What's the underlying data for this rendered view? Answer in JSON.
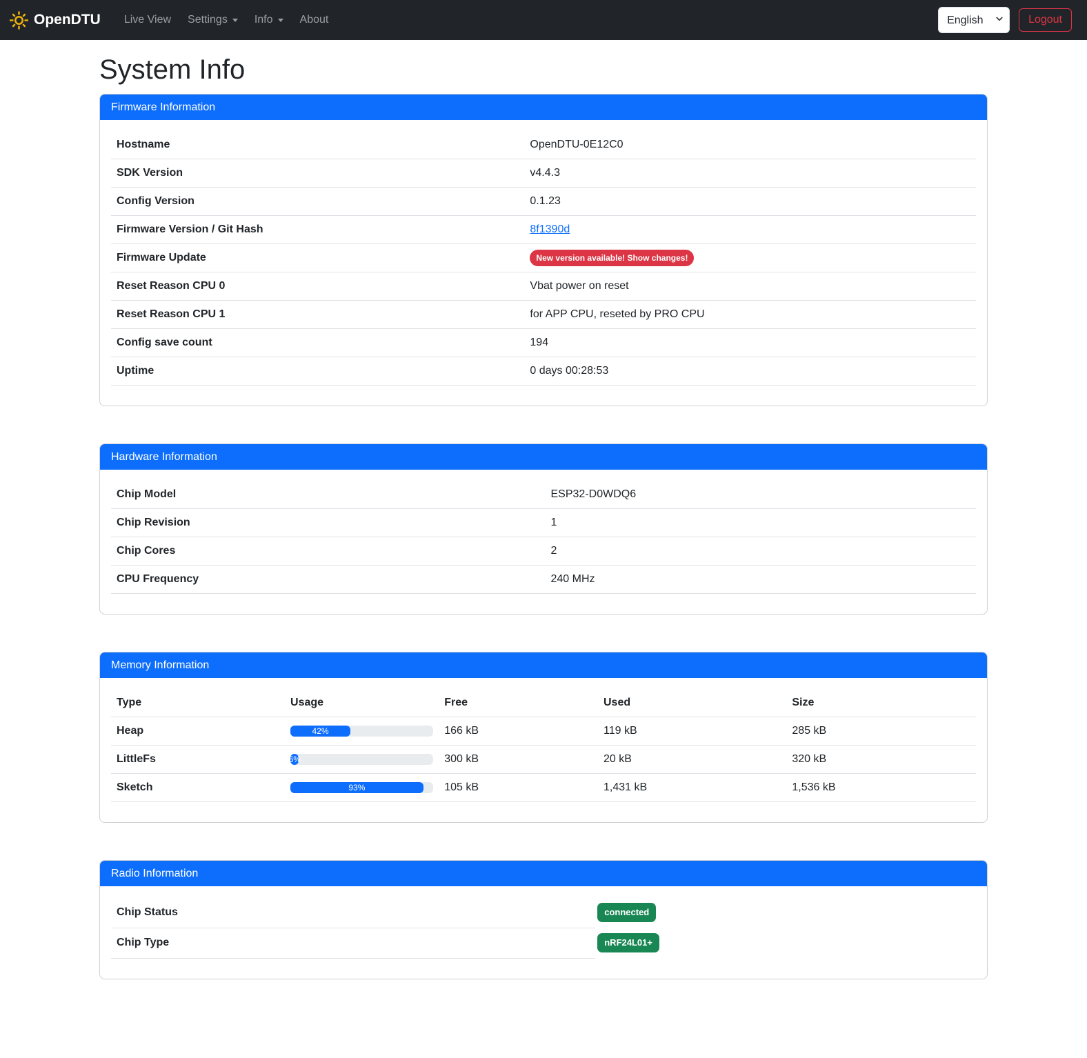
{
  "navbar": {
    "brand": "OpenDTU",
    "items": [
      {
        "label": "Live View",
        "dropdown": false
      },
      {
        "label": "Settings",
        "dropdown": true
      },
      {
        "label": "Info",
        "dropdown": true
      },
      {
        "label": "About",
        "dropdown": false
      }
    ],
    "language": "English",
    "logout_label": "Logout"
  },
  "page": {
    "title": "System Info"
  },
  "firmware": {
    "header": "Firmware Information",
    "rows": [
      {
        "label": "Hostname",
        "value": "OpenDTU-0E12C0"
      },
      {
        "label": "SDK Version",
        "value": "v4.4.3"
      },
      {
        "label": "Config Version",
        "value": "0.1.23"
      },
      {
        "label": "Firmware Version / Git Hash",
        "value": "8f1390d",
        "type": "link"
      },
      {
        "label": "Firmware Update",
        "value": "New version available! Show changes!",
        "type": "badge-danger"
      },
      {
        "label": "Reset Reason CPU 0",
        "value": "Vbat power on reset"
      },
      {
        "label": "Reset Reason CPU 1",
        "value": "for APP CPU, reseted by PRO CPU"
      },
      {
        "label": "Config save count",
        "value": "194"
      },
      {
        "label": "Uptime",
        "value": "0 days 00:28:53"
      }
    ]
  },
  "hardware": {
    "header": "Hardware Information",
    "rows": [
      {
        "label": "Chip Model",
        "value": "ESP32-D0WDQ6"
      },
      {
        "label": "Chip Revision",
        "value": "1"
      },
      {
        "label": "Chip Cores",
        "value": "2"
      },
      {
        "label": "CPU Frequency",
        "value": "240 MHz"
      }
    ]
  },
  "memory": {
    "header": "Memory Information",
    "columns": [
      "Type",
      "Usage",
      "Free",
      "Used",
      "Size"
    ],
    "rows": [
      {
        "type": "Heap",
        "usage_pct": 42,
        "usage_label": "42%",
        "free": "166 kB",
        "used": "119 kB",
        "size": "285 kB"
      },
      {
        "type": "LittleFs",
        "usage_pct": 6,
        "usage_label": "6%",
        "free": "300 kB",
        "used": "20 kB",
        "size": "320 kB"
      },
      {
        "type": "Sketch",
        "usage_pct": 93,
        "usage_label": "93%",
        "free": "105 kB",
        "used": "1,431 kB",
        "size": "1,536 kB"
      }
    ]
  },
  "radio": {
    "header": "Radio Information",
    "rows": [
      {
        "label": "Chip Status",
        "value": "connected"
      },
      {
        "label": "Chip Type",
        "value": "nRF24L01+"
      }
    ]
  },
  "colors": {
    "primary": "#0d6efd",
    "navbar_bg": "#212529",
    "danger": "#dc3545",
    "success": "#198754",
    "brand_icon": "#eeb00c",
    "progress_track": "#e9ecef",
    "table_border": "#dee2e6"
  }
}
